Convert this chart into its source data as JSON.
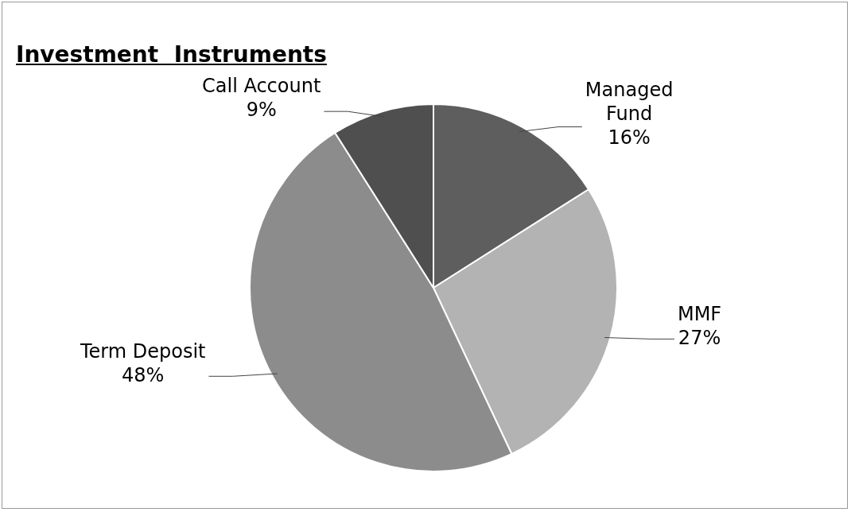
{
  "chart_data": {
    "type": "pie",
    "title": "Investment  Instruments",
    "categories": [
      "Managed Fund",
      "MMF",
      "Term Deposit",
      "Call Account"
    ],
    "values": [
      16,
      27,
      48,
      9
    ],
    "colors": [
      "#5e5e5e",
      "#b3b3b3",
      "#8c8c8c",
      "#4f4f4f"
    ],
    "value_labels": [
      "16%",
      "27%",
      "48%",
      "9%"
    ],
    "legend": false
  }
}
